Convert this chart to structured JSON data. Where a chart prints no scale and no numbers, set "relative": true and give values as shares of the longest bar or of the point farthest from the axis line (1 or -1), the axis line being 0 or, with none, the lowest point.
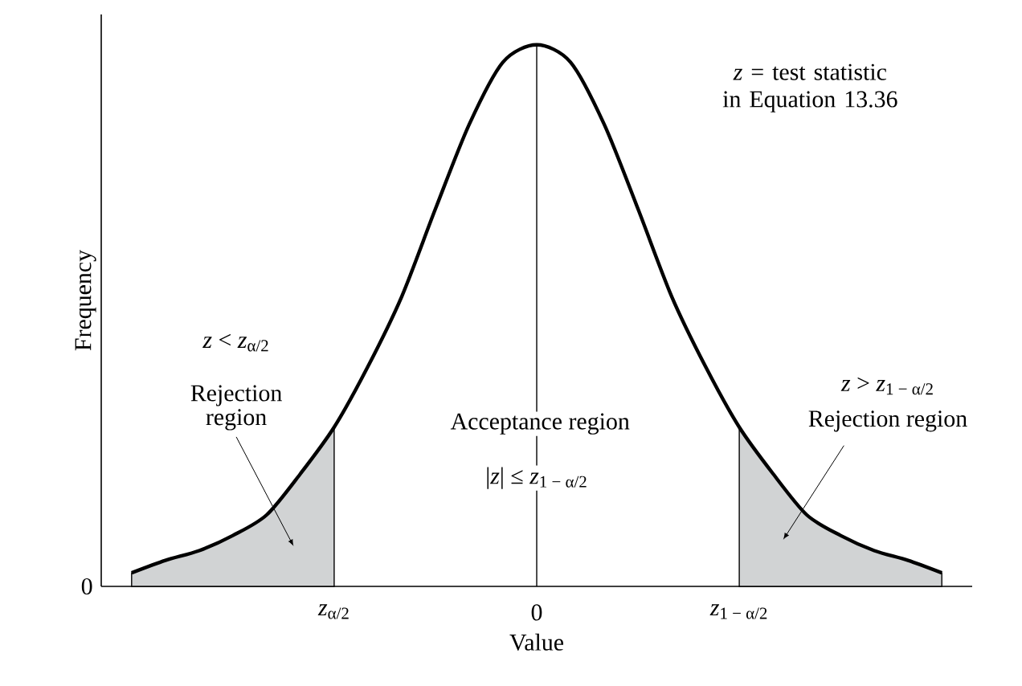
{
  "chart_data": {
    "type": "line",
    "xlabel": "Value",
    "ylabel": "Frequency",
    "relative": true,
    "categories": [
      null,
      null,
      null,
      null,
      null,
      null,
      "*z*$_{α/2}$",
      null,
      null,
      null,
      null,
      null,
      "0",
      null,
      null,
      null,
      null,
      null,
      "*z*$_{1 − α/2}$",
      null,
      null,
      null,
      null,
      null,
      null
    ],
    "series": [
      {
        "type": "area",
        "color": "#d1d3d4",
        "values": [
          0.025,
          0.048,
          0.066,
          0.094,
          0.132,
          0.208,
          0.294,
          null,
          null,
          null,
          null,
          null,
          null,
          null,
          null,
          null,
          null,
          null,
          null,
          null,
          null,
          null,
          null,
          null,
          null
        ]
      },
      {
        "type": "area",
        "color": "#d1d3d4",
        "values": [
          null,
          null,
          null,
          null,
          null,
          null,
          null,
          null,
          null,
          null,
          null,
          null,
          null,
          null,
          null,
          null,
          null,
          null,
          0.294,
          0.208,
          0.132,
          0.094,
          0.066,
          0.048,
          0.025
        ]
      },
      {
        "color": "#000000",
        "values": [
          0.025,
          0.048,
          0.066,
          0.094,
          0.132,
          0.208,
          0.294,
          0.406,
          0.535,
          0.697,
          0.853,
          0.968,
          1,
          0.968,
          0.853,
          0.697,
          0.535,
          0.406,
          0.294,
          0.208,
          0.132,
          0.094,
          0.066,
          0.048,
          0.025
        ]
      }
    ],
    "ref_lines": [
      {
        "axis": "x",
        "value": "0",
        "color": "#000000"
      }
    ],
    "annotations": [
      "*z* = test statistic in Equation 13.36",
      "*z* < *z*$_{α/2}$",
      "Rejection region",
      "Acceptance region",
      "|*z*| ≤ *z*$_{1 − α/2}$",
      "*z* > *z*$_{1 − α/2}$",
      "Rejection region",
      "0"
    ]
  }
}
